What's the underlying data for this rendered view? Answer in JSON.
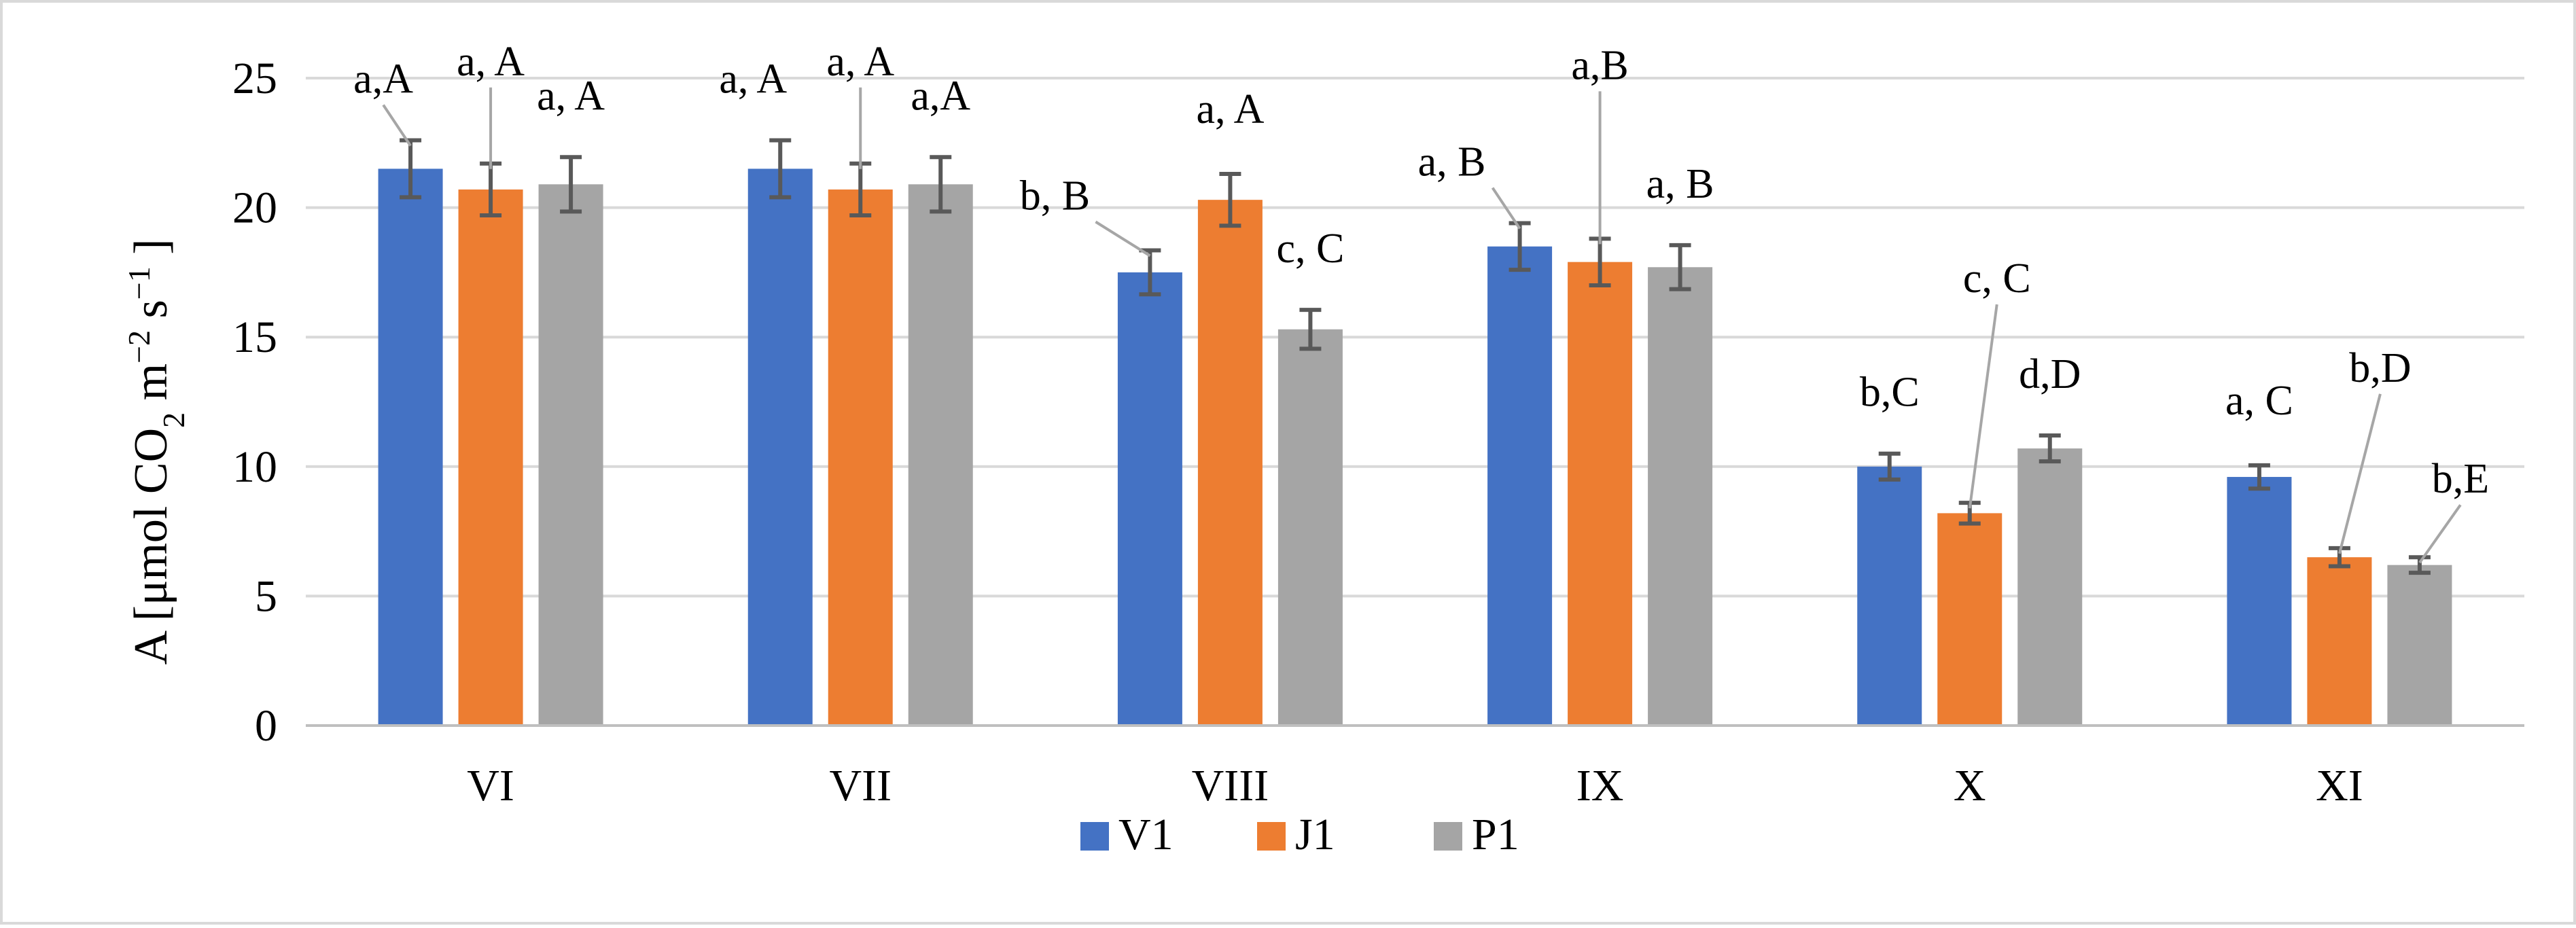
{
  "chart_data": {
    "type": "bar",
    "title": "",
    "xlabel": "",
    "ylabel_main": "A  [μmol CO",
    "ylabel_sub1": "2",
    "ylabel_mid": " m",
    "ylabel_sup1": "−2",
    "ylabel_mid2": " s",
    "ylabel_sup2": "−1",
    "ylabel_end": " ]",
    "ylim": [
      0,
      25
    ],
    "yticks": [
      0,
      5,
      10,
      15,
      20,
      25
    ],
    "grid": true,
    "legend_position": "bottom-center",
    "categories": [
      "VI",
      "VII",
      "VIII",
      "IX",
      "X",
      "XI"
    ],
    "series": [
      {
        "name": "V1",
        "color": "#4472C4",
        "values": [
          21.5,
          21.5,
          17.5,
          18.5,
          10.0,
          9.6
        ],
        "errors": [
          1.1,
          1.1,
          0.85,
          0.9,
          0.5,
          0.45
        ],
        "labels": [
          "a,A",
          "a, A",
          "b, B",
          "a, B",
          "b,C",
          "a, C"
        ]
      },
      {
        "name": "J1",
        "color": "#ED7D31",
        "values": [
          20.7,
          20.7,
          20.3,
          17.9,
          8.2,
          6.5
        ],
        "errors": [
          1.0,
          1.0,
          1.0,
          0.9,
          0.4,
          0.35
        ],
        "labels": [
          "a, A",
          "a, A",
          "a, A",
          "a,B",
          "c, C",
          "b,D"
        ]
      },
      {
        "name": "P1",
        "color": "#A5A5A5",
        "values": [
          20.9,
          20.9,
          15.3,
          17.7,
          10.7,
          6.2
        ],
        "errors": [
          1.05,
          1.05,
          0.75,
          0.85,
          0.5,
          0.3
        ],
        "labels": [
          "a, A",
          "a,A",
          "c, C",
          "a, B",
          "d,D",
          "b,E"
        ]
      }
    ]
  },
  "colors": {
    "grid": "#D9D9D9",
    "axis": "#BFBFBF",
    "error_bar": "#595959",
    "leader": "#A6A6A6"
  }
}
